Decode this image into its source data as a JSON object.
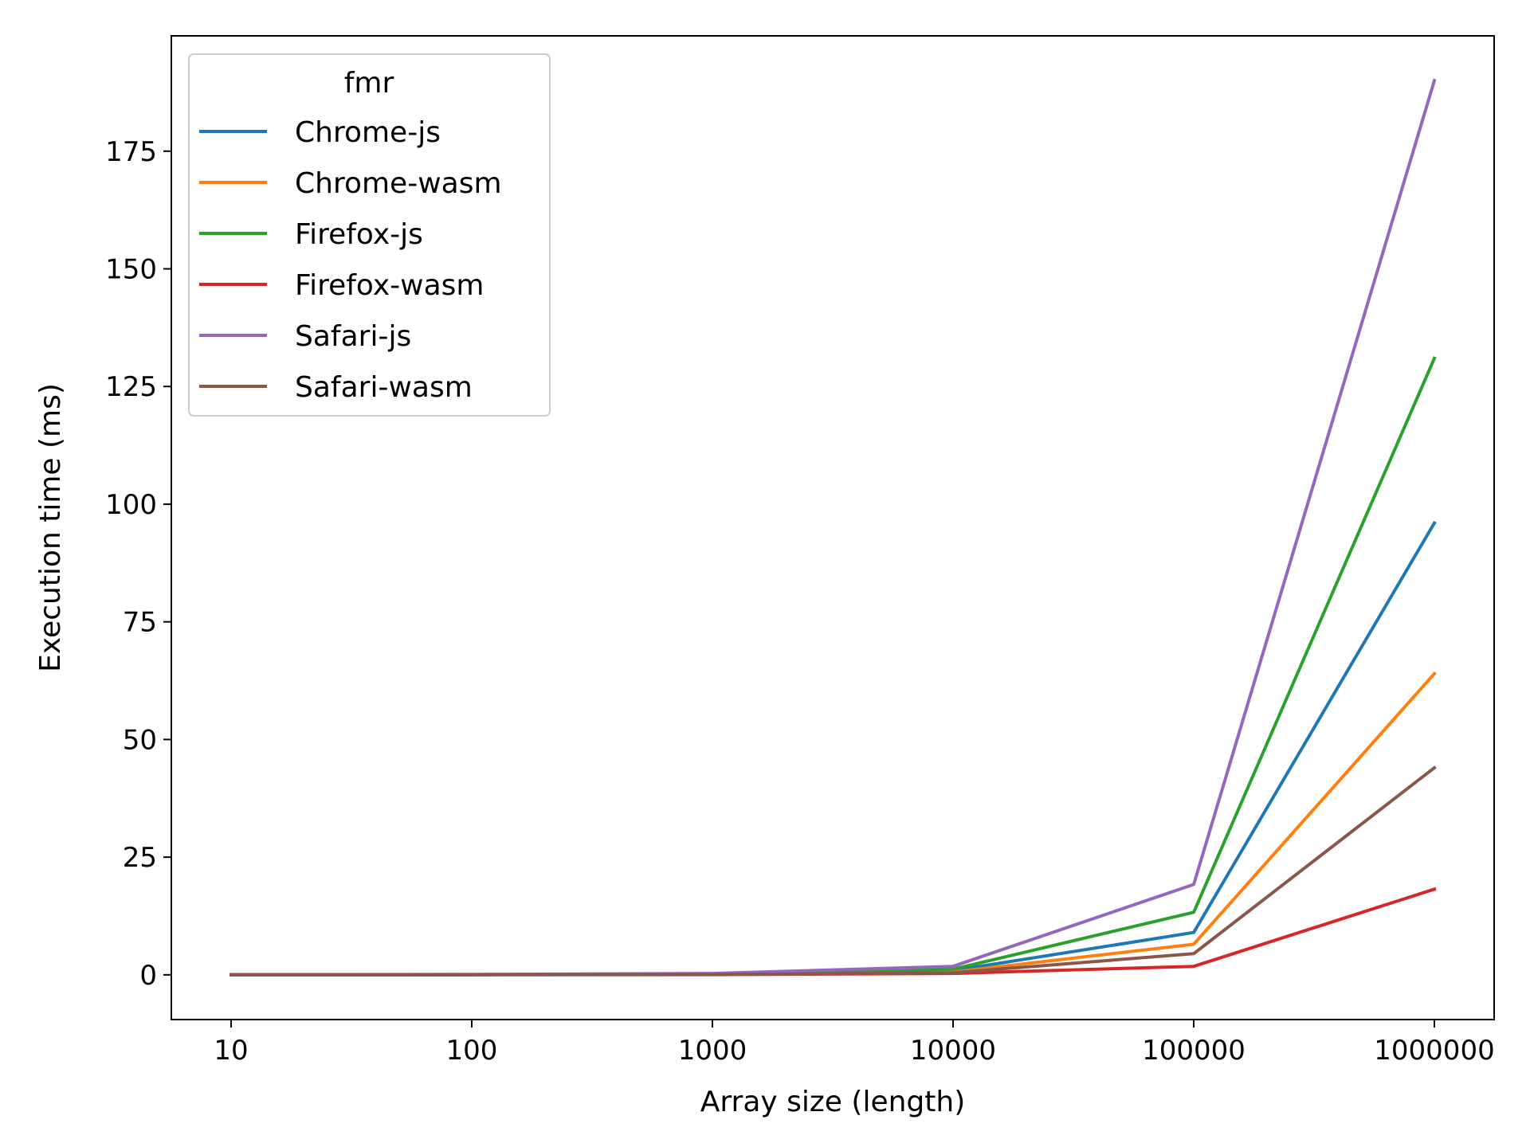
{
  "chart_data": {
    "type": "line",
    "title": "",
    "xlabel": "Array size (length)",
    "ylabel": "Execution time (ms)",
    "x": [
      "10",
      "100",
      "1000",
      "10000",
      "100000",
      "1000000"
    ],
    "x_scale": "categorical",
    "ylim": [
      -9.5,
      199.5
    ],
    "yticks": [
      0,
      25,
      50,
      75,
      100,
      125,
      150,
      175
    ],
    "grid": false,
    "legend": {
      "title": "fmr",
      "placement": "top-left"
    },
    "series": [
      {
        "name": "Chrome-js",
        "color": "#1f77b4",
        "values": [
          0.01,
          0.05,
          0.1,
          0.9,
          9.0,
          96.0
        ]
      },
      {
        "name": "Chrome-wasm",
        "color": "#ff7f0e",
        "values": [
          0.01,
          0.04,
          0.08,
          0.6,
          6.5,
          64.0
        ]
      },
      {
        "name": "Firefox-js",
        "color": "#2ca02c",
        "values": [
          0.01,
          0.05,
          0.15,
          1.2,
          13.3,
          131.0
        ]
      },
      {
        "name": "Firefox-wasm",
        "color": "#d62728",
        "values": [
          0.01,
          0.02,
          0.05,
          0.3,
          1.8,
          18.2
        ]
      },
      {
        "name": "Safari-js",
        "color": "#9467bd",
        "values": [
          0.02,
          0.1,
          0.3,
          1.8,
          19.2,
          190.0
        ]
      },
      {
        "name": "Safari-wasm",
        "color": "#8c564b",
        "values": [
          0.01,
          0.03,
          0.06,
          0.45,
          4.5,
          44.0
        ]
      }
    ]
  }
}
